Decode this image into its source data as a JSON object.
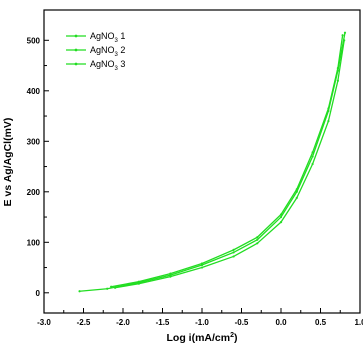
{
  "chart_data": {
    "type": "line",
    "xlabel": "Log i(mA/cm²)",
    "ylabel": "E vs Ag/AgCl(mV)",
    "xlim": [
      -3.0,
      1.0
    ],
    "ylim": [
      -40,
      560
    ],
    "x_ticks": [
      "-3.0",
      "-2.5",
      "-2.0",
      "-1.5",
      "-1.0",
      "-0.5",
      "0.0",
      "0.5",
      "1.0"
    ],
    "y_ticks": [
      "0",
      "100",
      "200",
      "300",
      "400",
      "500"
    ],
    "legend_position": "top-left",
    "line_color": "#22dd22",
    "series": [
      {
        "name": "AgNO3 1",
        "legend_base": "AgNO",
        "legend_sub": "3",
        "legend_suffix": " 1",
        "points": [
          [
            -2.55,
            3
          ],
          [
            -2.2,
            8
          ],
          [
            -1.8,
            20
          ],
          [
            -1.4,
            35
          ],
          [
            -1.0,
            55
          ],
          [
            -0.6,
            80
          ],
          [
            -0.3,
            105
          ],
          [
            0.0,
            150
          ],
          [
            0.2,
            200
          ],
          [
            0.4,
            270
          ],
          [
            0.6,
            360
          ],
          [
            0.72,
            440
          ],
          [
            0.81,
            515
          ]
        ]
      },
      {
        "name": "AgNO3 2",
        "legend_base": "AgNO",
        "legend_sub": "3",
        "legend_suffix": " 2",
        "points": [
          [
            -2.1,
            10
          ],
          [
            -1.8,
            18
          ],
          [
            -1.4,
            32
          ],
          [
            -1.0,
            50
          ],
          [
            -0.6,
            72
          ],
          [
            -0.3,
            98
          ],
          [
            0.0,
            140
          ],
          [
            0.2,
            188
          ],
          [
            0.4,
            255
          ],
          [
            0.6,
            340
          ],
          [
            0.72,
            420
          ],
          [
            0.8,
            500
          ]
        ]
      },
      {
        "name": "AgNO3 3",
        "legend_base": "AgNO",
        "legend_sub": "3",
        "legend_suffix": " 3",
        "points": [
          [
            -2.15,
            12
          ],
          [
            -1.8,
            22
          ],
          [
            -1.4,
            38
          ],
          [
            -1.0,
            58
          ],
          [
            -0.6,
            85
          ],
          [
            -0.3,
            110
          ],
          [
            0.0,
            155
          ],
          [
            0.2,
            205
          ],
          [
            0.4,
            278
          ],
          [
            0.6,
            365
          ],
          [
            0.72,
            445
          ],
          [
            0.78,
            510
          ]
        ]
      }
    ]
  }
}
